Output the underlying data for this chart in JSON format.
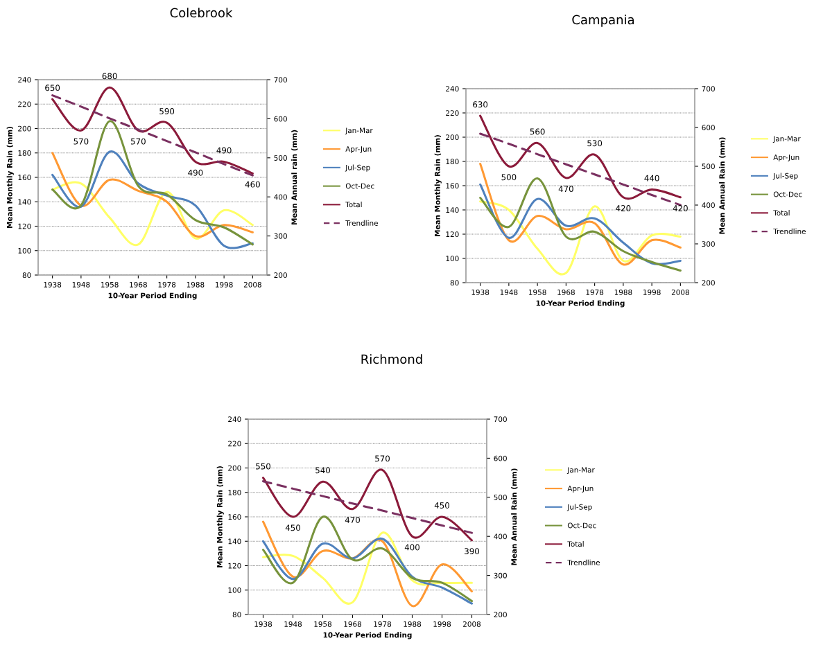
{
  "chart_data": [
    {
      "type": "line",
      "title": "Colebrook",
      "xlabel": "10-Year Period Ending",
      "ylabel": "Mean Monthly Rain (mm)",
      "y2label": "Mean Annual rain (mm)",
      "categories": [
        "1938",
        "1948",
        "1958",
        "1968",
        "1978",
        "1988",
        "1998",
        "2008"
      ],
      "ylim": [
        80,
        240
      ],
      "yticks": [
        80,
        100,
        120,
        140,
        160,
        180,
        200,
        220,
        240
      ],
      "y2lim": [
        200,
        700
      ],
      "y2ticks": [
        200,
        300,
        400,
        500,
        600,
        700
      ],
      "grid": "y",
      "legend": "right",
      "marker": "none",
      "series": [
        {
          "name": "Jan-Mar",
          "color": "#ffff66",
          "values": [
            150,
            155,
            127,
            105,
            148,
            110,
            133,
            121
          ]
        },
        {
          "name": "Apr-Jun",
          "color": "#ff9933",
          "values": [
            180,
            137,
            158,
            149,
            140,
            112,
            121,
            115
          ]
        },
        {
          "name": "Jul-Sep",
          "color": "#4f81bd",
          "values": [
            162,
            136,
            181,
            155,
            145,
            137,
            104,
            106
          ]
        },
        {
          "name": "Oct-Dec",
          "color": "#77933c",
          "values": [
            150,
            137,
            206,
            153,
            146,
            125,
            119,
            105
          ]
        },
        {
          "name": "Total",
          "color": "#8b1a3a",
          "axis": "y2",
          "data_labels": true,
          "values": [
            650,
            570,
            680,
            570,
            590,
            490,
            490,
            460
          ]
        },
        {
          "name": "Trendline",
          "color": "#7a3060",
          "axis": "y2",
          "line_style": "dashed",
          "values": [
            660,
            631,
            601,
            572,
            543,
            514,
            484,
            455
          ]
        }
      ]
    },
    {
      "type": "line",
      "title": "Campania",
      "xlabel": "10-Year Period Ending",
      "ylabel": "Mean Monthly Rain (mm)",
      "y2label": "Mean Annual Rain (mm)",
      "categories": [
        "1938",
        "1948",
        "1958",
        "1968",
        "1978",
        "1988",
        "1998",
        "2008"
      ],
      "ylim": [
        80,
        240
      ],
      "yticks": [
        80,
        100,
        120,
        140,
        160,
        180,
        200,
        220,
        240
      ],
      "y2lim": [
        200,
        700
      ],
      "y2ticks": [
        200,
        300,
        400,
        500,
        600,
        700
      ],
      "grid": "y",
      "legend": "right",
      "marker": "none",
      "series": [
        {
          "name": "Jan-Mar",
          "color": "#ffff66",
          "values": [
            147,
            140,
            108,
            88,
            143,
            98,
            119,
            118
          ]
        },
        {
          "name": "Apr-Jun",
          "color": "#ff9933",
          "values": [
            178,
            115,
            135,
            124,
            129,
            95,
            115,
            109
          ]
        },
        {
          "name": "Jul-Sep",
          "color": "#4f81bd",
          "values": [
            161,
            117,
            149,
            127,
            133,
            113,
            96,
            98
          ]
        },
        {
          "name": "Oct-Dec",
          "color": "#77933c",
          "values": [
            150,
            126,
            166,
            118,
            122,
            106,
            97,
            90
          ]
        },
        {
          "name": "Total",
          "color": "#8b1a3a",
          "axis": "y2",
          "data_labels": true,
          "values": [
            630,
            500,
            560,
            470,
            530,
            420,
            440,
            420
          ]
        },
        {
          "name": "Trendline",
          "color": "#7a3060",
          "axis": "y2",
          "line_style": "dashed",
          "values": [
            584,
            558,
            531,
            505,
            479,
            453,
            426,
            400
          ]
        }
      ]
    },
    {
      "type": "line",
      "title": "Richmond",
      "xlabel": "10-Year Period Ending",
      "ylabel": "Mean Monthly Rain (mm)",
      "y2label": "Mean Annual Rain (mm)",
      "categories": [
        "1938",
        "1948",
        "1958",
        "1968",
        "1978",
        "1988",
        "1998",
        "2008"
      ],
      "ylim": [
        80,
        240
      ],
      "yticks": [
        80,
        100,
        120,
        140,
        160,
        180,
        200,
        220,
        240
      ],
      "y2lim": [
        200,
        700
      ],
      "y2ticks": [
        200,
        300,
        400,
        500,
        600,
        700
      ],
      "grid": "y",
      "legend": "right",
      "marker": "none",
      "series": [
        {
          "name": "Jan-Mar",
          "color": "#ffff66",
          "values": [
            127,
            128,
            110,
            90,
            147,
            108,
            106,
            106
          ]
        },
        {
          "name": "Apr-Jun",
          "color": "#ff9933",
          "values": [
            156,
            111,
            132,
            126,
            140,
            87,
            121,
            99
          ]
        },
        {
          "name": "Jul-Sep",
          "color": "#4f81bd",
          "values": [
            140,
            109,
            138,
            126,
            142,
            111,
            102,
            89
          ]
        },
        {
          "name": "Oct-Dec",
          "color": "#77933c",
          "values": [
            133,
            106,
            160,
            125,
            134,
            110,
            106,
            91
          ]
        },
        {
          "name": "Total",
          "color": "#8b1a3a",
          "axis": "y2",
          "data_labels": true,
          "values": [
            550,
            450,
            540,
            470,
            570,
            400,
            450,
            390
          ]
        },
        {
          "name": "Trendline",
          "color": "#7a3060",
          "axis": "y2",
          "line_style": "dashed",
          "values": [
            541,
            522,
            503,
            484,
            466,
            447,
            428,
            409
          ]
        }
      ]
    }
  ]
}
